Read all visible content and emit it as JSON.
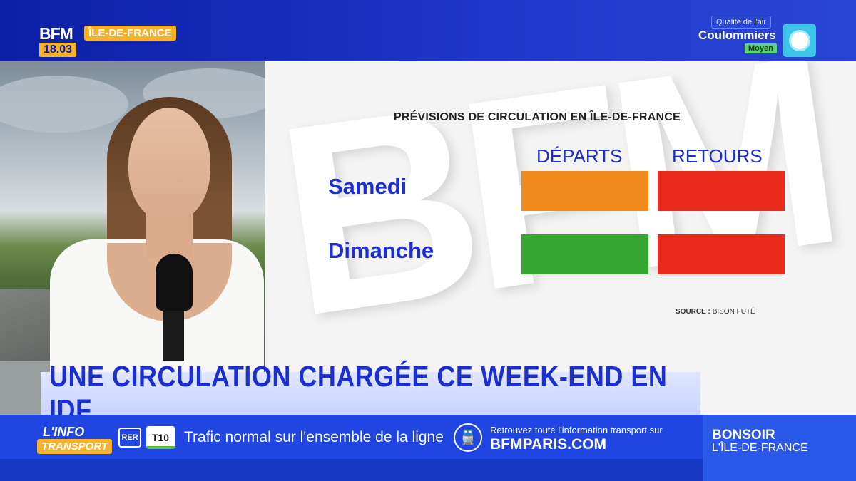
{
  "header": {
    "logo_brand": "BFM",
    "logo_region": "ÎLE-DE-FRANCE",
    "time": "18.03",
    "air_quality": {
      "label": "Qualité de l'air",
      "city": "Coulommiers",
      "level": "Moyen",
      "icon": "air-quality-icon"
    }
  },
  "graphic": {
    "title": "PRÉVISIONS DE CIRCULATION EN ÎLE-DE-FRANCE",
    "columns": [
      "DÉPARTS",
      "RETOURS"
    ],
    "rows": [
      {
        "label": "Samedi",
        "departs_color": "#f18a1c",
        "retours_color": "#ea2a1a"
      },
      {
        "label": "Dimanche",
        "departs_color": "#36a832",
        "retours_color": "#ea2a1a"
      }
    ],
    "source_label": "SOURCE :",
    "source_value": "BISON FUTÉ"
  },
  "headline": "UNE CIRCULATION CHARGÉE CE WEEK-END EN IDF",
  "ticker": {
    "logo_top": "L'INFO",
    "logo_bottom": "TRANSPORT",
    "rer_icon_label": "RER",
    "line_badge": "T10",
    "message": "Trafic normal sur l'ensemble de la ligne",
    "promo_small": "Retrouvez toute l'information transport sur",
    "promo_big": "BFMPARIS.COM",
    "right_line1": "BONSOIR",
    "right_line2": "L'ÎLE-DE-FRANCE"
  },
  "colors": {
    "brand_blue": "#1b2fd0",
    "accent_yellow": "#f4b12c"
  }
}
